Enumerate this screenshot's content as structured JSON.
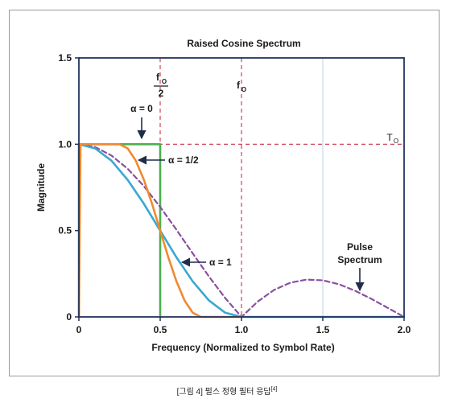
{
  "caption": {
    "text": "[그림 4] 펄스 정형 필터 응답",
    "ref": "[4]"
  },
  "chart_data": {
    "type": "line",
    "title": "Raised Cosine Spectrum",
    "xlabel": "Frequency (Normalized to Symbol Rate)",
    "ylabel": "Magnitude",
    "xlim": [
      0,
      2.0
    ],
    "ylim": [
      0,
      1.5
    ],
    "x_ticks": [
      "0",
      "0.5",
      "1.0",
      "1.5",
      "2.0"
    ],
    "y_ticks": [
      "0",
      "0.5",
      "1.0",
      "1.5"
    ],
    "grid": false,
    "series": [
      {
        "name": "α = 0",
        "color": "#4caf50",
        "x": [
          0,
          0,
          0.5,
          0.5
        ],
        "y": [
          0,
          1.0,
          1.0,
          0
        ]
      },
      {
        "name": "α = 1/2",
        "color": "#f08a30",
        "x": [
          0,
          0.01,
          0.25,
          0.3,
          0.35,
          0.4,
          0.45,
          0.5,
          0.55,
          0.6,
          0.65,
          0.7,
          0.75,
          0.8,
          1.0
        ],
        "y": [
          0,
          1.0,
          1.0,
          0.976,
          0.905,
          0.794,
          0.655,
          0.5,
          0.345,
          0.206,
          0.095,
          0.024,
          0,
          0,
          0
        ]
      },
      {
        "name": "α = 1",
        "color": "#3aa8d0",
        "x": [
          0,
          0.1,
          0.2,
          0.3,
          0.4,
          0.5,
          0.6,
          0.7,
          0.8,
          0.9,
          1.0,
          1.5,
          2.0
        ],
        "y": [
          1.0,
          0.976,
          0.905,
          0.794,
          0.655,
          0.5,
          0.345,
          0.206,
          0.095,
          0.024,
          0,
          0,
          0
        ]
      },
      {
        "name": "Pulse Spectrum",
        "color": "#8a4f9e",
        "dashed": true,
        "x": [
          0,
          0.1,
          0.2,
          0.3,
          0.4,
          0.5,
          0.6,
          0.7,
          0.8,
          0.9,
          1.0,
          1.1,
          1.2,
          1.3,
          1.4,
          1.5,
          1.6,
          1.7,
          1.8,
          1.9,
          2.0
        ],
        "y": [
          1.0,
          0.984,
          0.935,
          0.858,
          0.757,
          0.637,
          0.505,
          0.368,
          0.234,
          0.109,
          0,
          0.089,
          0.156,
          0.198,
          0.216,
          0.212,
          0.189,
          0.151,
          0.104,
          0.052,
          0
        ]
      }
    ],
    "reference_lines": [
      {
        "axis": "x",
        "value": 0.5,
        "label_top": "f",
        "label_sub": "O",
        "label_denominator": "2",
        "color": "#c8334a",
        "dashed": true
      },
      {
        "axis": "x",
        "value": 1.0,
        "label_top": "f",
        "label_sub": "O",
        "color": "#c8334a",
        "dashed": true
      },
      {
        "axis": "y",
        "value": 1.0,
        "label_top": "T",
        "label_sub": "O",
        "color": "#c8334a",
        "dashed": true
      },
      {
        "axis": "x",
        "value": 1.5,
        "color": "#c8d8ec",
        "dashed": false
      }
    ],
    "annotations": [
      {
        "text": "α = 0"
      },
      {
        "text": "α = 1/2"
      },
      {
        "text": "α = 1"
      },
      {
        "text": "Pulse"
      },
      {
        "text": "Spectrum"
      }
    ],
    "colors": {
      "axis": "#23335e",
      "text": "#1a1a1a"
    }
  }
}
